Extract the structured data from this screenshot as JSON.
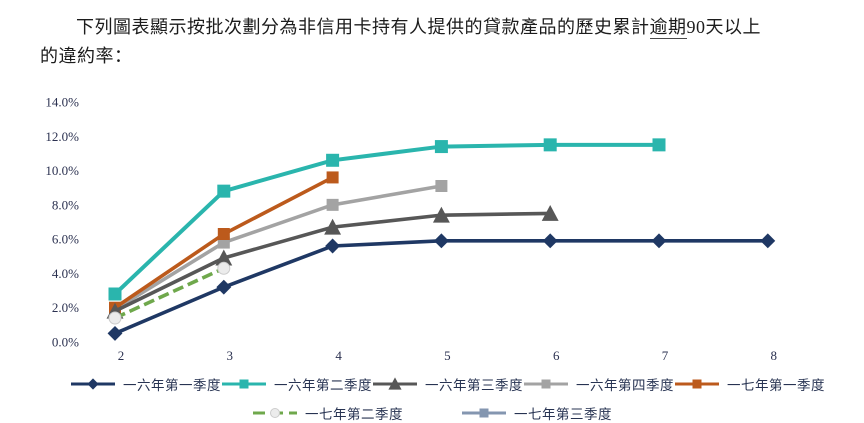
{
  "title": {
    "line1_pre": "下列圖表顯示按批次劃分為非信用卡持有人提供的貸款產品的歷史累計",
    "line1_underline": "逾期",
    "line1_post": "90天以上",
    "line2": "的違約率："
  },
  "chart_data": {
    "type": "line",
    "title": "",
    "xlabel": "",
    "ylabel": "",
    "x_ticks": [
      2,
      3,
      4,
      5,
      6,
      7,
      8
    ],
    "y_ticks": [
      "14.0%",
      "12.0%",
      "10.0%",
      "8.0%",
      "6.0%",
      "4.0%",
      "2.0%",
      "0.0%"
    ],
    "ylim": [
      0,
      14
    ],
    "xlim": [
      2,
      8
    ],
    "grid": false,
    "legend_position": "bottom",
    "legend_rows": [
      [
        0,
        1,
        2,
        3,
        4
      ],
      [
        5,
        6
      ]
    ],
    "series": [
      {
        "name": "一六年第一季度",
        "color": "#1f3864",
        "marker": "diamond",
        "dash": "solid",
        "x": [
          2,
          3,
          4,
          5,
          6,
          7,
          8
        ],
        "values": [
          0.5,
          3.2,
          5.6,
          5.9,
          5.9,
          5.9,
          5.9
        ]
      },
      {
        "name": "一六年第二季度",
        "color": "#2ab5ad",
        "marker": "square",
        "dash": "solid",
        "x": [
          2,
          3,
          4,
          5,
          6,
          7
        ],
        "values": [
          2.8,
          8.8,
          10.6,
          11.4,
          11.5,
          11.5
        ]
      },
      {
        "name": "一六年第三季度",
        "color": "#575757",
        "marker": "triangle",
        "dash": "solid",
        "x": [
          2,
          3,
          4,
          5,
          6
        ],
        "values": [
          1.8,
          4.9,
          6.7,
          7.4,
          7.5
        ]
      },
      {
        "name": "一六年第四季度",
        "color": "#a3a3a3",
        "marker": "square",
        "dash": "solid",
        "x": [
          2,
          3,
          4,
          5
        ],
        "values": [
          1.9,
          5.8,
          8.0,
          9.1
        ]
      },
      {
        "name": "一七年第一季度",
        "color": "#bc5a1c",
        "marker": "square",
        "dash": "solid",
        "x": [
          2,
          3,
          4
        ],
        "values": [
          2.0,
          6.3,
          9.6
        ]
      },
      {
        "name": "一七年第二季度",
        "color": "#6fa84c",
        "marker": "circle-open",
        "dash": "dashed",
        "x": [
          2,
          3
        ],
        "values": [
          1.4,
          4.3
        ]
      },
      {
        "name": "一七年第三季度",
        "color": "#8496b0",
        "marker": "square",
        "dash": "solid",
        "x": [
          2
        ],
        "values": [
          1.7
        ]
      }
    ]
  }
}
